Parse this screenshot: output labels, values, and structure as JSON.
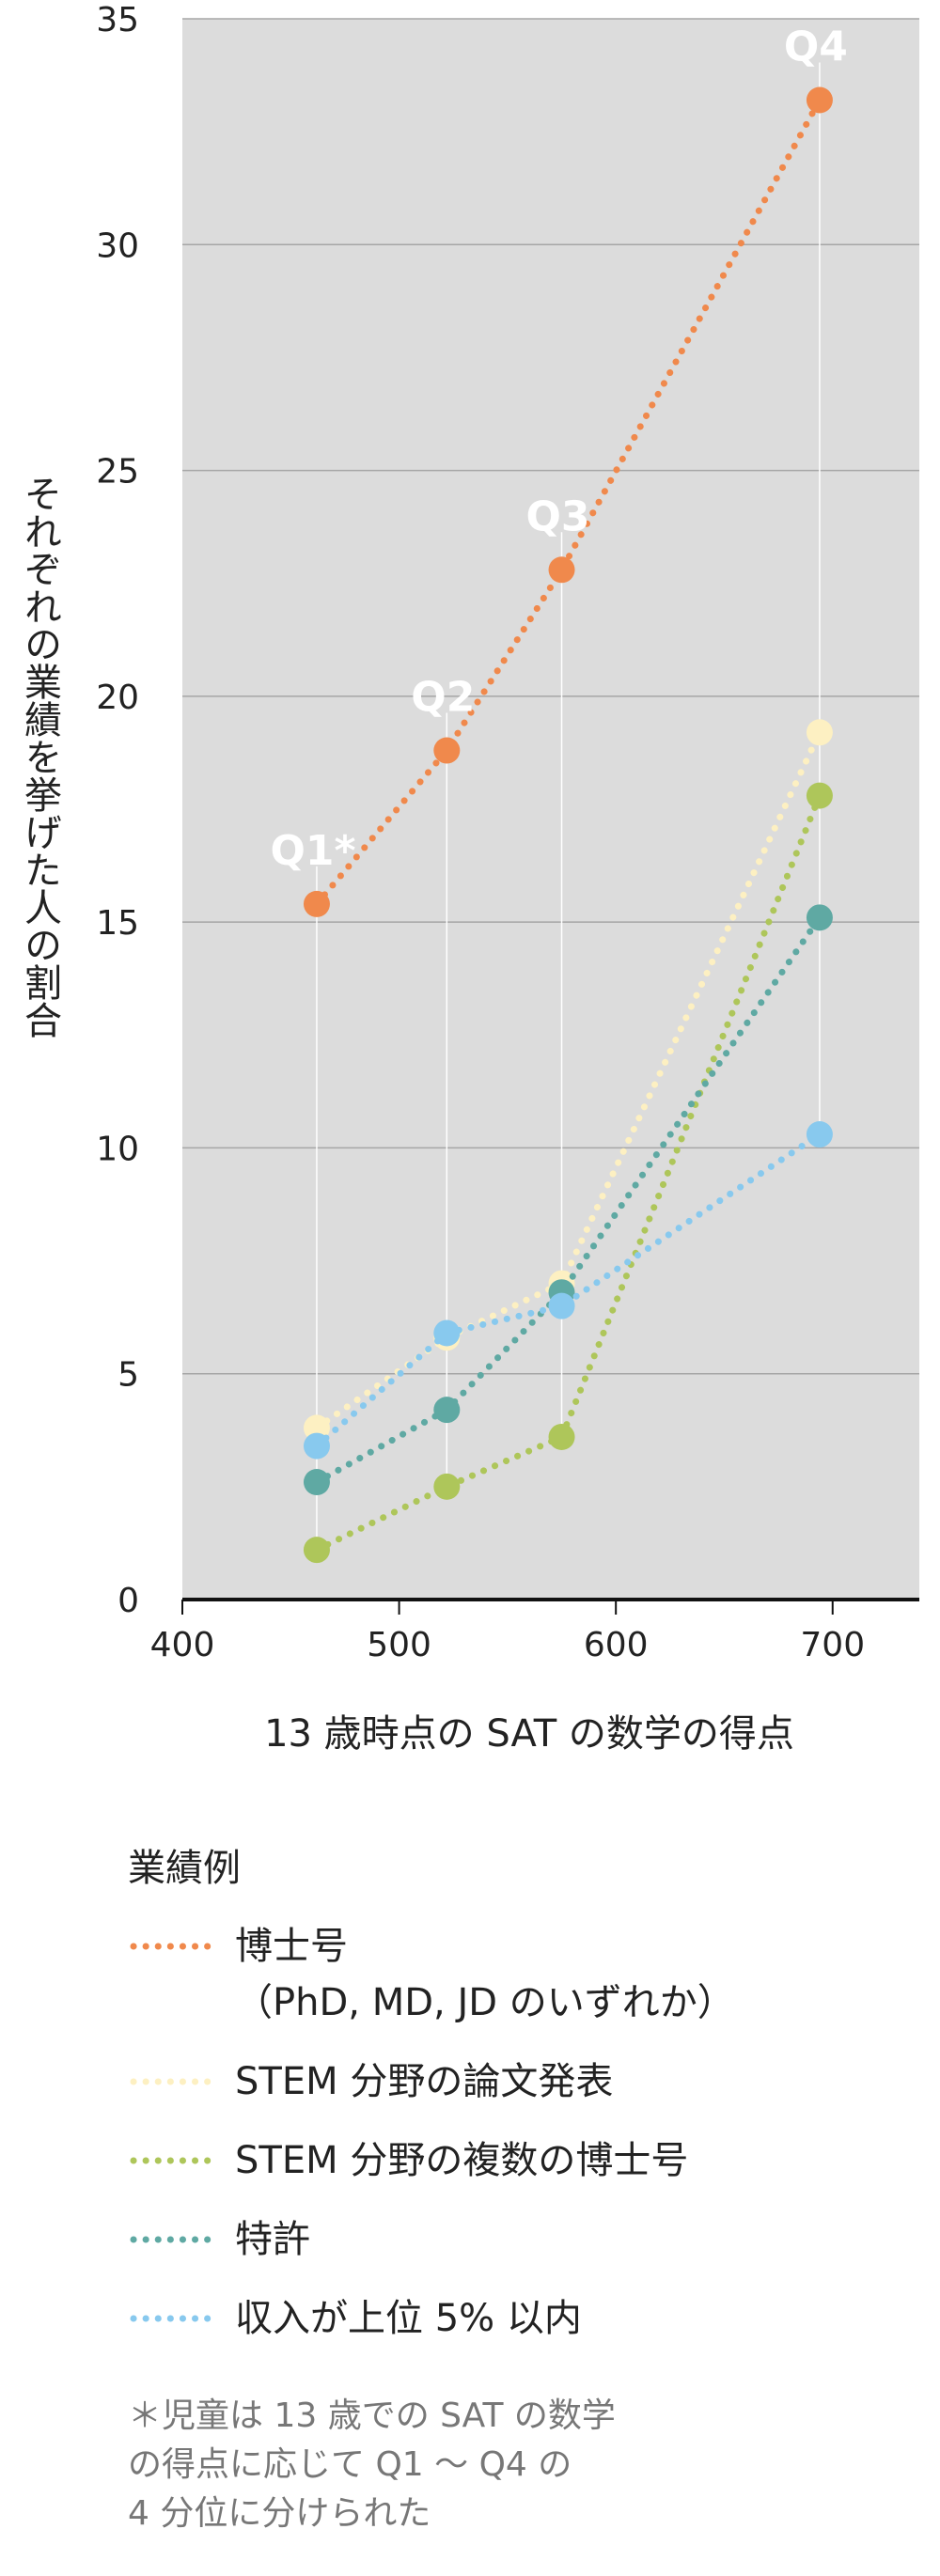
{
  "chart_data": {
    "type": "line",
    "ylabel": "それぞれの業績を挙げた人の割合",
    "xlabel": "13 歳時点の SAT の数学の得点",
    "xlim": [
      400,
      740
    ],
    "ylim": [
      0,
      35
    ],
    "xticks": [
      400,
      500,
      600,
      700
    ],
    "yticks": [
      0,
      5,
      10,
      15,
      20,
      25,
      30,
      35
    ],
    "x": [
      462,
      522,
      575,
      694
    ],
    "quartile_labels": [
      "Q1*",
      "Q2",
      "Q3",
      "Q4"
    ],
    "grid": "horizontal",
    "background": "#dcdcdc",
    "series": [
      {
        "name": "博士号",
        "name_sub": "（PhD, MD, JD のいずれか）",
        "color": "#f0894c",
        "values": [
          15.4,
          18.8,
          22.8,
          33.2
        ]
      },
      {
        "name": "STEM 分野の論文発表",
        "color": "#fdf0c2",
        "values": [
          3.8,
          5.8,
          7.0,
          19.2
        ]
      },
      {
        "name": "STEM 分野の複数の博士号",
        "color": "#aec65a",
        "values": [
          1.1,
          2.5,
          3.6,
          17.8
        ]
      },
      {
        "name": "特許",
        "color": "#5fa9a3",
        "values": [
          2.6,
          4.2,
          6.8,
          15.1
        ]
      },
      {
        "name": "収入が上位 5% 以内",
        "color": "#88c9ee",
        "values": [
          3.4,
          5.9,
          6.5,
          10.3
        ]
      }
    ]
  },
  "legend": {
    "title": "業績例"
  },
  "footnote": "＊児童は 13 歳での SAT の数学\nの得点に応じて Q1 〜 Q4 の\n4 分位に分けられた"
}
